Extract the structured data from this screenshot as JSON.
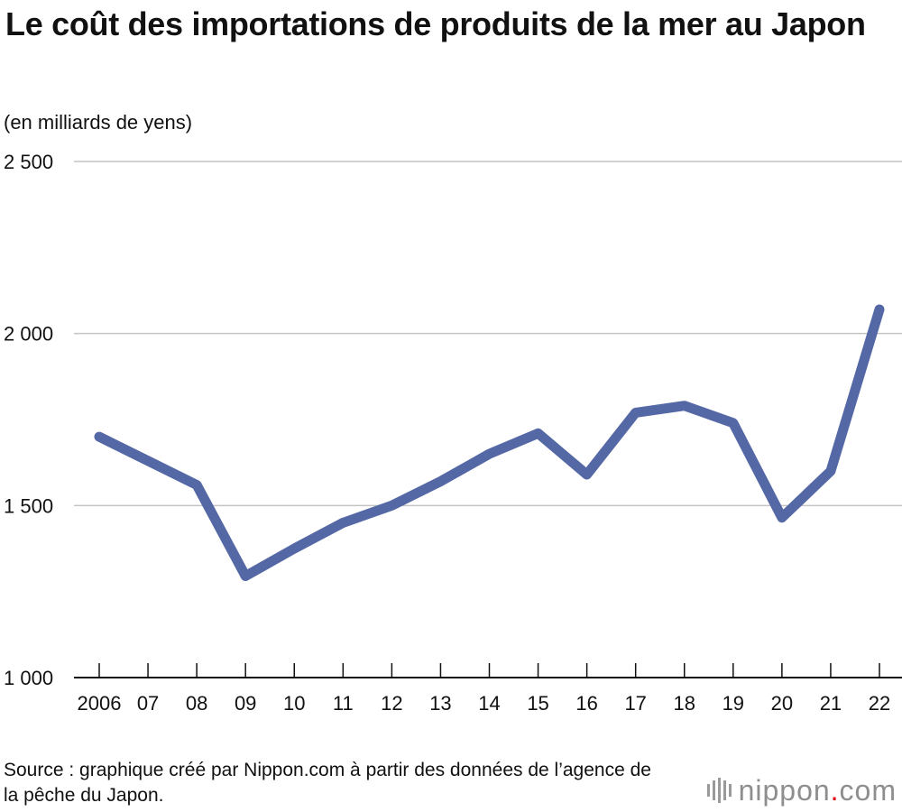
{
  "chart_data": {
    "type": "line",
    "title": "Le coût des importations de produits de la mer au Japon",
    "unit_label": "(en milliards de yens)",
    "xlabel": "",
    "ylabel": "",
    "x_tick_labels": [
      "2006",
      "07",
      "08",
      "09",
      "10",
      "11",
      "12",
      "13",
      "14",
      "15",
      "16",
      "17",
      "18",
      "19",
      "20",
      "21",
      "22"
    ],
    "y_ticks": [
      1000,
      1500,
      2000,
      2500
    ],
    "y_tick_labels": [
      "1 000",
      "1 500",
      "2 000",
      "2 500"
    ],
    "ylim": [
      1000,
      2500
    ],
    "grid": true,
    "series": [
      {
        "name": "Coût des importations de produits de la mer",
        "color": "#5568a6",
        "values": [
          1700,
          1630,
          1560,
          1295,
          1375,
          1450,
          1500,
          1570,
          1650,
          1710,
          1590,
          1770,
          1790,
          1740,
          1465,
          1600,
          2070
        ]
      }
    ]
  },
  "source": "Source : graphique créé par Nippon.com à partir des données de l’agence de la pêche du Japon.",
  "logo": {
    "brand": "nippon",
    "dot": ".",
    "suffix": "com",
    "dot_color": "#e60012"
  }
}
